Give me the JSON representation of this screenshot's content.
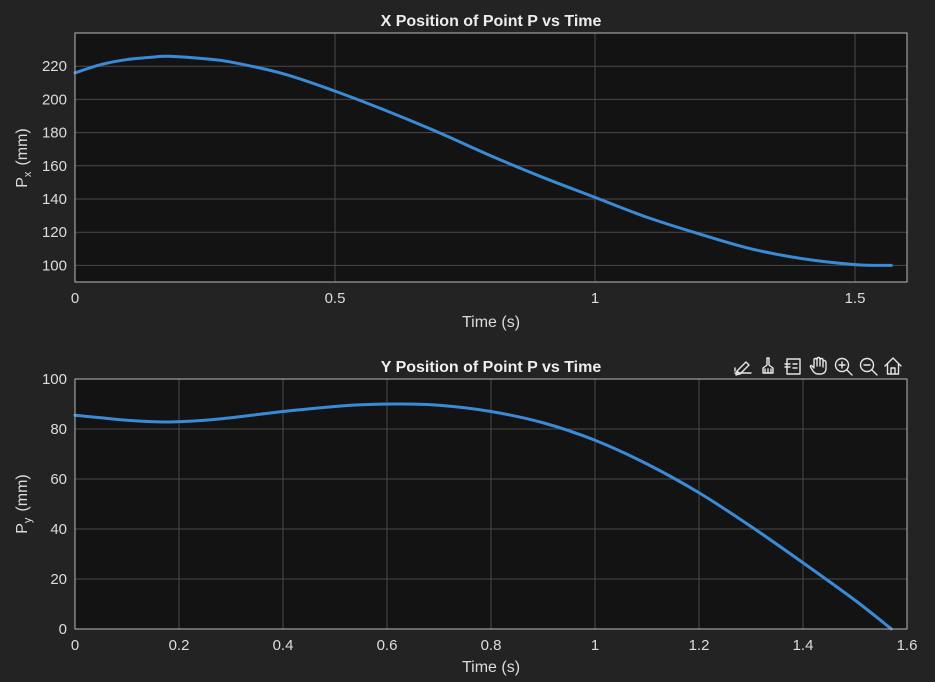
{
  "chart_data": [
    {
      "type": "line",
      "title": "X Position of Point P vs Time",
      "xlabel": "Time (s)",
      "ylabel_main": "P",
      "ylabel_sub": "x",
      "ylabel_unit": "(mm)",
      "xlim": [
        0,
        1.6
      ],
      "ylim": [
        90,
        240
      ],
      "xticks": [
        0,
        0.5,
        1,
        1.5
      ],
      "xtick_labels": [
        "0",
        "0.5",
        "1",
        "1.5"
      ],
      "yticks": [
        100,
        120,
        140,
        160,
        180,
        200,
        220
      ],
      "ytick_labels": [
        "100",
        "120",
        "140",
        "160",
        "180",
        "200",
        "220"
      ],
      "grid": true,
      "color": "#3a8ad6",
      "series": [
        {
          "x": [
            0,
            0.05,
            0.1,
            0.15,
            0.18,
            0.25,
            0.3,
            0.4,
            0.5,
            0.6,
            0.7,
            0.8,
            0.9,
            1.0,
            1.1,
            1.2,
            1.3,
            1.4,
            1.5,
            1.57
          ],
          "y": [
            216,
            221,
            224,
            225.5,
            226,
            224.5,
            222.5,
            215.5,
            205,
            193,
            180,
            166,
            153,
            141,
            129,
            119,
            110,
            104,
            100.5,
            100
          ]
        }
      ]
    },
    {
      "type": "line",
      "title": "Y Position of Point P vs Time",
      "xlabel": "Time (s)",
      "ylabel_main": "P",
      "ylabel_sub": "y",
      "ylabel_unit": "(mm)",
      "xlim": [
        0,
        1.6
      ],
      "ylim": [
        0,
        100
      ],
      "xticks": [
        0,
        0.2,
        0.4,
        0.6,
        0.8,
        1,
        1.2,
        1.4,
        1.6
      ],
      "xtick_labels": [
        "0",
        "0.2",
        "0.4",
        "0.6",
        "0.8",
        "1",
        "1.2",
        "1.4",
        "1.6"
      ],
      "yticks": [
        0,
        20,
        40,
        60,
        80,
        100
      ],
      "ytick_labels": [
        "0",
        "20",
        "40",
        "60",
        "80",
        "100"
      ],
      "grid": true,
      "color": "#3a8ad6",
      "series": [
        {
          "x": [
            0,
            0.05,
            0.1,
            0.175,
            0.25,
            0.3,
            0.4,
            0.5,
            0.55,
            0.62,
            0.7,
            0.8,
            0.9,
            1.0,
            1.1,
            1.2,
            1.3,
            1.4,
            1.5,
            1.57
          ],
          "y": [
            85.5,
            84.5,
            83.5,
            82.8,
            83.5,
            84.5,
            87,
            89,
            89.7,
            90,
            89.5,
            87,
            82.5,
            75.5,
            66,
            54.5,
            41,
            26.5,
            11.5,
            0
          ]
        }
      ]
    }
  ],
  "toolbar": {
    "icons": [
      "data-tip-icon",
      "brush-icon",
      "restore-view-icon",
      "pan-hand-icon",
      "zoom-in-icon",
      "zoom-out-icon",
      "home-icon"
    ]
  }
}
